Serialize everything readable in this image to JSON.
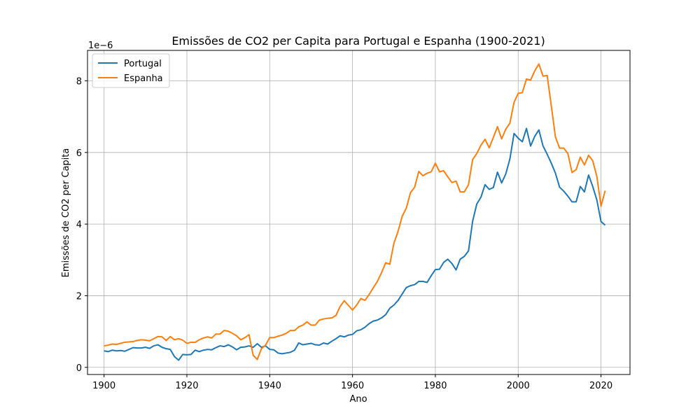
{
  "chart_data": {
    "type": "line",
    "title": "Emissões de CO2 per Capita para Portugal e Espanha (1900-2021)",
    "xlabel": "Ano",
    "ylabel": "Emissões de CO2 per Capita",
    "y_offset_label": "1e−6",
    "xlim": [
      1896,
      2027
    ],
    "ylim": [
      -0.2,
      8.85
    ],
    "y_scale_factor": 1e-06,
    "x_ticks": [
      1900,
      1920,
      1940,
      1960,
      1980,
      2000,
      2020
    ],
    "y_ticks": [
      0,
      2,
      4,
      6,
      8
    ],
    "grid": true,
    "legend_position": "upper left",
    "series": [
      {
        "name": "Portugal",
        "color": "#1f77b4",
        "x": [
          1900,
          1901,
          1902,
          1903,
          1904,
          1905,
          1906,
          1907,
          1908,
          1909,
          1910,
          1911,
          1912,
          1913,
          1914,
          1915,
          1916,
          1917,
          1918,
          1919,
          1920,
          1921,
          1922,
          1923,
          1924,
          1925,
          1926,
          1927,
          1928,
          1929,
          1930,
          1931,
          1932,
          1933,
          1934,
          1935,
          1936,
          1937,
          1938,
          1939,
          1940,
          1941,
          1942,
          1943,
          1944,
          1945,
          1946,
          1947,
          1948,
          1949,
          1950,
          1951,
          1952,
          1953,
          1954,
          1955,
          1956,
          1957,
          1958,
          1959,
          1960,
          1961,
          1962,
          1963,
          1964,
          1965,
          1966,
          1967,
          1968,
          1969,
          1970,
          1971,
          1972,
          1973,
          1974,
          1975,
          1976,
          1977,
          1978,
          1979,
          1980,
          1981,
          1982,
          1983,
          1984,
          1985,
          1986,
          1987,
          1988,
          1989,
          1990,
          1991,
          1992,
          1993,
          1994,
          1995,
          1996,
          1997,
          1998,
          1999,
          2000,
          2001,
          2002,
          2003,
          2004,
          2005,
          2006,
          2007,
          2008,
          2009,
          2010,
          2011,
          2012,
          2013,
          2014,
          2015,
          2016,
          2017,
          2018,
          2019,
          2020,
          2021
        ],
        "values": [
          0.46,
          0.44,
          0.48,
          0.46,
          0.47,
          0.45,
          0.5,
          0.55,
          0.54,
          0.54,
          0.56,
          0.53,
          0.6,
          0.63,
          0.56,
          0.52,
          0.5,
          0.3,
          0.2,
          0.36,
          0.35,
          0.36,
          0.48,
          0.44,
          0.48,
          0.5,
          0.49,
          0.55,
          0.6,
          0.58,
          0.63,
          0.57,
          0.49,
          0.56,
          0.57,
          0.6,
          0.56,
          0.66,
          0.56,
          0.6,
          0.5,
          0.49,
          0.4,
          0.38,
          0.4,
          0.42,
          0.48,
          0.68,
          0.63,
          0.65,
          0.67,
          0.63,
          0.62,
          0.68,
          0.65,
          0.73,
          0.8,
          0.88,
          0.85,
          0.9,
          0.92,
          1.02,
          1.05,
          1.12,
          1.22,
          1.29,
          1.32,
          1.38,
          1.47,
          1.65,
          1.74,
          1.87,
          2.05,
          2.23,
          2.28,
          2.31,
          2.4,
          2.4,
          2.37,
          2.56,
          2.73,
          2.74,
          2.93,
          3.02,
          2.9,
          2.72,
          3.02,
          3.1,
          3.25,
          4.08,
          4.56,
          4.75,
          5.1,
          4.97,
          5.02,
          5.45,
          5.15,
          5.4,
          5.82,
          6.53,
          6.4,
          6.3,
          6.67,
          6.18,
          6.45,
          6.63,
          6.18,
          5.95,
          5.7,
          5.42,
          5.03,
          4.92,
          4.78,
          4.62,
          4.62,
          5.05,
          4.9,
          5.37,
          5.05,
          4.67,
          4.07,
          3.97
        ]
      },
      {
        "name": "Espanha",
        "color": "#ff7f0e",
        "x": [
          1900,
          1901,
          1902,
          1903,
          1904,
          1905,
          1906,
          1907,
          1908,
          1909,
          1910,
          1911,
          1912,
          1913,
          1914,
          1915,
          1916,
          1917,
          1918,
          1919,
          1920,
          1921,
          1922,
          1923,
          1924,
          1925,
          1926,
          1927,
          1928,
          1929,
          1930,
          1931,
          1932,
          1933,
          1934,
          1935,
          1936,
          1937,
          1938,
          1939,
          1940,
          1941,
          1942,
          1943,
          1944,
          1945,
          1946,
          1947,
          1948,
          1949,
          1950,
          1951,
          1952,
          1953,
          1954,
          1955,
          1956,
          1957,
          1958,
          1959,
          1960,
          1961,
          1962,
          1963,
          1964,
          1965,
          1966,
          1967,
          1968,
          1969,
          1970,
          1971,
          1972,
          1973,
          1974,
          1975,
          1976,
          1977,
          1978,
          1979,
          1980,
          1981,
          1982,
          1983,
          1984,
          1985,
          1986,
          1987,
          1988,
          1989,
          1990,
          1991,
          1992,
          1993,
          1994,
          1995,
          1996,
          1997,
          1998,
          1999,
          2000,
          2001,
          2002,
          2003,
          2004,
          2005,
          2006,
          2007,
          2008,
          2009,
          2010,
          2011,
          2012,
          2013,
          2014,
          2015,
          2016,
          2017,
          2018,
          2019,
          2020,
          2021
        ],
        "values": [
          0.6,
          0.62,
          0.65,
          0.64,
          0.67,
          0.7,
          0.71,
          0.72,
          0.75,
          0.77,
          0.76,
          0.74,
          0.8,
          0.86,
          0.85,
          0.75,
          0.86,
          0.77,
          0.8,
          0.76,
          0.67,
          0.7,
          0.7,
          0.77,
          0.82,
          0.85,
          0.82,
          0.93,
          0.93,
          1.03,
          1.01,
          0.95,
          0.88,
          0.77,
          0.83,
          0.91,
          0.34,
          0.22,
          0.52,
          0.62,
          0.83,
          0.83,
          0.87,
          0.9,
          0.95,
          1.03,
          1.03,
          1.13,
          1.18,
          1.27,
          1.18,
          1.18,
          1.32,
          1.35,
          1.37,
          1.38,
          1.45,
          1.7,
          1.86,
          1.73,
          1.6,
          1.74,
          1.92,
          1.87,
          2.03,
          2.22,
          2.4,
          2.64,
          2.92,
          2.88,
          3.47,
          3.8,
          4.22,
          4.45,
          4.88,
          5.03,
          5.47,
          5.35,
          5.42,
          5.46,
          5.7,
          5.46,
          5.49,
          5.32,
          5.16,
          5.2,
          4.9,
          4.9,
          5.1,
          5.8,
          5.97,
          6.2,
          6.37,
          6.13,
          6.42,
          6.72,
          6.38,
          6.65,
          6.82,
          7.4,
          7.65,
          7.67,
          8.05,
          8.02,
          8.28,
          8.47,
          8.13,
          8.15,
          7.3,
          6.43,
          6.12,
          6.12,
          5.97,
          5.44,
          5.52,
          5.87,
          5.65,
          5.92,
          5.77,
          5.33,
          4.5,
          4.93
        ]
      }
    ]
  }
}
